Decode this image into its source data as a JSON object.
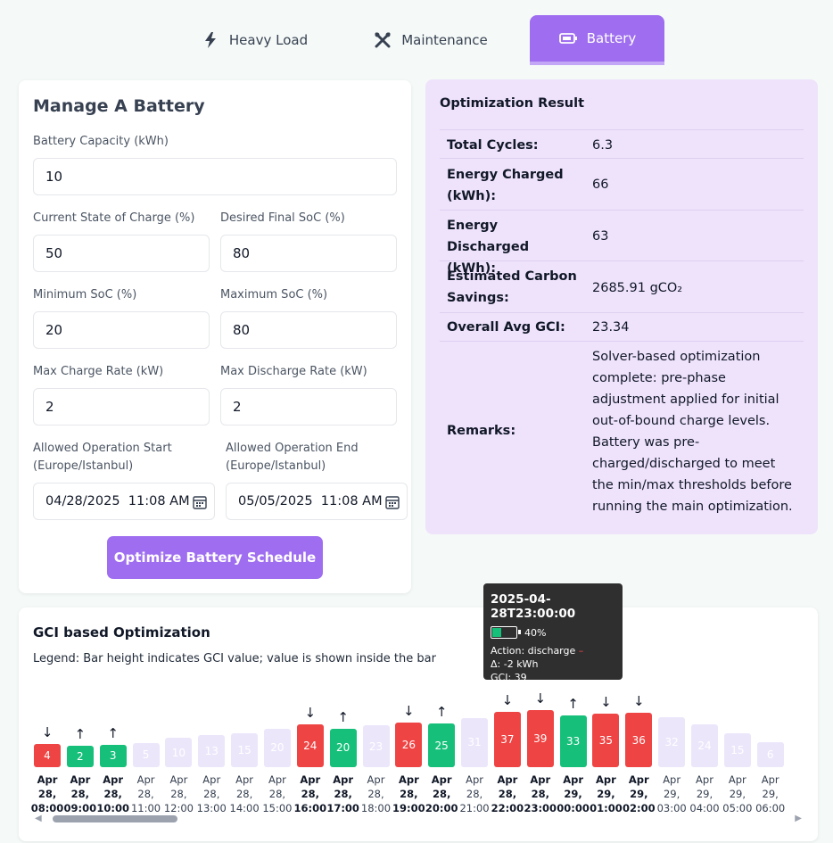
{
  "tabs": [
    {
      "label": "Heavy Load",
      "icon": "lightning-icon"
    },
    {
      "label": "Maintenance",
      "icon": "tools-icon"
    },
    {
      "label": "Battery",
      "icon": "battery-icon"
    }
  ],
  "form": {
    "title": "Manage A Battery",
    "capacity_label": "Battery Capacity (kWh)",
    "capacity_value": "10",
    "soc_label": "Current State of Charge (%)",
    "soc_value": "50",
    "final_soc_label": "Desired Final SoC (%)",
    "final_soc_value": "80",
    "min_soc_label": "Minimum SoC (%)",
    "min_soc_value": "20",
    "max_soc_label": "Maximum SoC (%)",
    "max_soc_value": "80",
    "charge_rate_label": "Max Charge Rate (kW)",
    "charge_rate_value": "2",
    "discharge_rate_label": "Max Discharge Rate (kW)",
    "discharge_rate_value": "2",
    "start_label_1": "Allowed Operation Start",
    "start_label_2": "(Europe/Istanbul)",
    "start_value": "04/28/2025  11:08 AM",
    "end_label_1": "Allowed Operation End",
    "end_label_2": "(Europe/Istanbul)",
    "end_value": "05/05/2025  11:08 AM",
    "submit_label": "Optimize Battery Schedule"
  },
  "result": {
    "title": "Optimization Result",
    "rows": [
      {
        "key": "Total Cycles:",
        "value": "6.3"
      },
      {
        "key": "Energy Charged (kWh):",
        "value": "66"
      },
      {
        "key": "Energy Discharged (kWh):",
        "value": "63"
      },
      {
        "key": "Estimated Carbon Savings:",
        "value": "2685.91 gCO₂"
      },
      {
        "key": "Overall Avg GCI:",
        "value": "23.34"
      },
      {
        "key": "Remarks:",
        "value": "Solver-based optimization complete: pre-phase adjustment applied for initial out-of-bound charge levels. Battery was pre-charged/discharged to meet the min/max thresholds before running the main optimization."
      }
    ]
  },
  "chart": {
    "title": "GCI based Optimization",
    "legend": "Legend: Bar height indicates GCI value; value is shown inside the bar"
  },
  "chart_data": {
    "type": "bar",
    "categories": [
      "Apr 28, 08:00",
      "Apr 28, 09:00",
      "Apr 28, 10:00",
      "Apr 28, 11:00",
      "Apr 28, 12:00",
      "Apr 28, 13:00",
      "Apr 28, 14:00",
      "Apr 28, 15:00",
      "Apr 28, 16:00",
      "Apr 28, 17:00",
      "Apr 28, 18:00",
      "Apr 28, 19:00",
      "Apr 28, 20:00",
      "Apr 28, 21:00",
      "Apr 28, 22:00",
      "Apr 28, 23:00",
      "Apr 29, 00:00",
      "Apr 29, 01:00",
      "Apr 29, 02:00",
      "Apr 29, 03:00",
      "Apr 29, 04:00",
      "Apr 29, 05:00",
      "Apr 29, 06:00"
    ],
    "values": [
      4,
      2,
      3,
      5,
      10,
      13,
      15,
      20,
      24,
      20,
      23,
      26,
      25,
      31,
      37,
      39,
      33,
      35,
      36,
      32,
      24,
      15,
      6
    ],
    "actions": [
      "discharge",
      "charge",
      "charge",
      "idle",
      "idle",
      "idle",
      "idle",
      "idle",
      "discharge",
      "charge",
      "idle",
      "discharge",
      "charge",
      "idle",
      "discharge",
      "discharge",
      "charge",
      "discharge",
      "discharge",
      "idle",
      "idle",
      "idle",
      "idle"
    ],
    "colors": {
      "charge": "#17c07a",
      "discharge": "#ef4444",
      "idle": "#ece6fb"
    },
    "title": "GCI based Optimization",
    "ylabel": "",
    "xlabel": ""
  },
  "tooltip": {
    "title": "2025-04-28T23:00:00",
    "soc": "40%",
    "soc_fraction": 0.4,
    "action": "Action: discharge",
    "action_mark": "–",
    "delta": "Δ: -2 kWh",
    "gci": "GCI: 39"
  }
}
